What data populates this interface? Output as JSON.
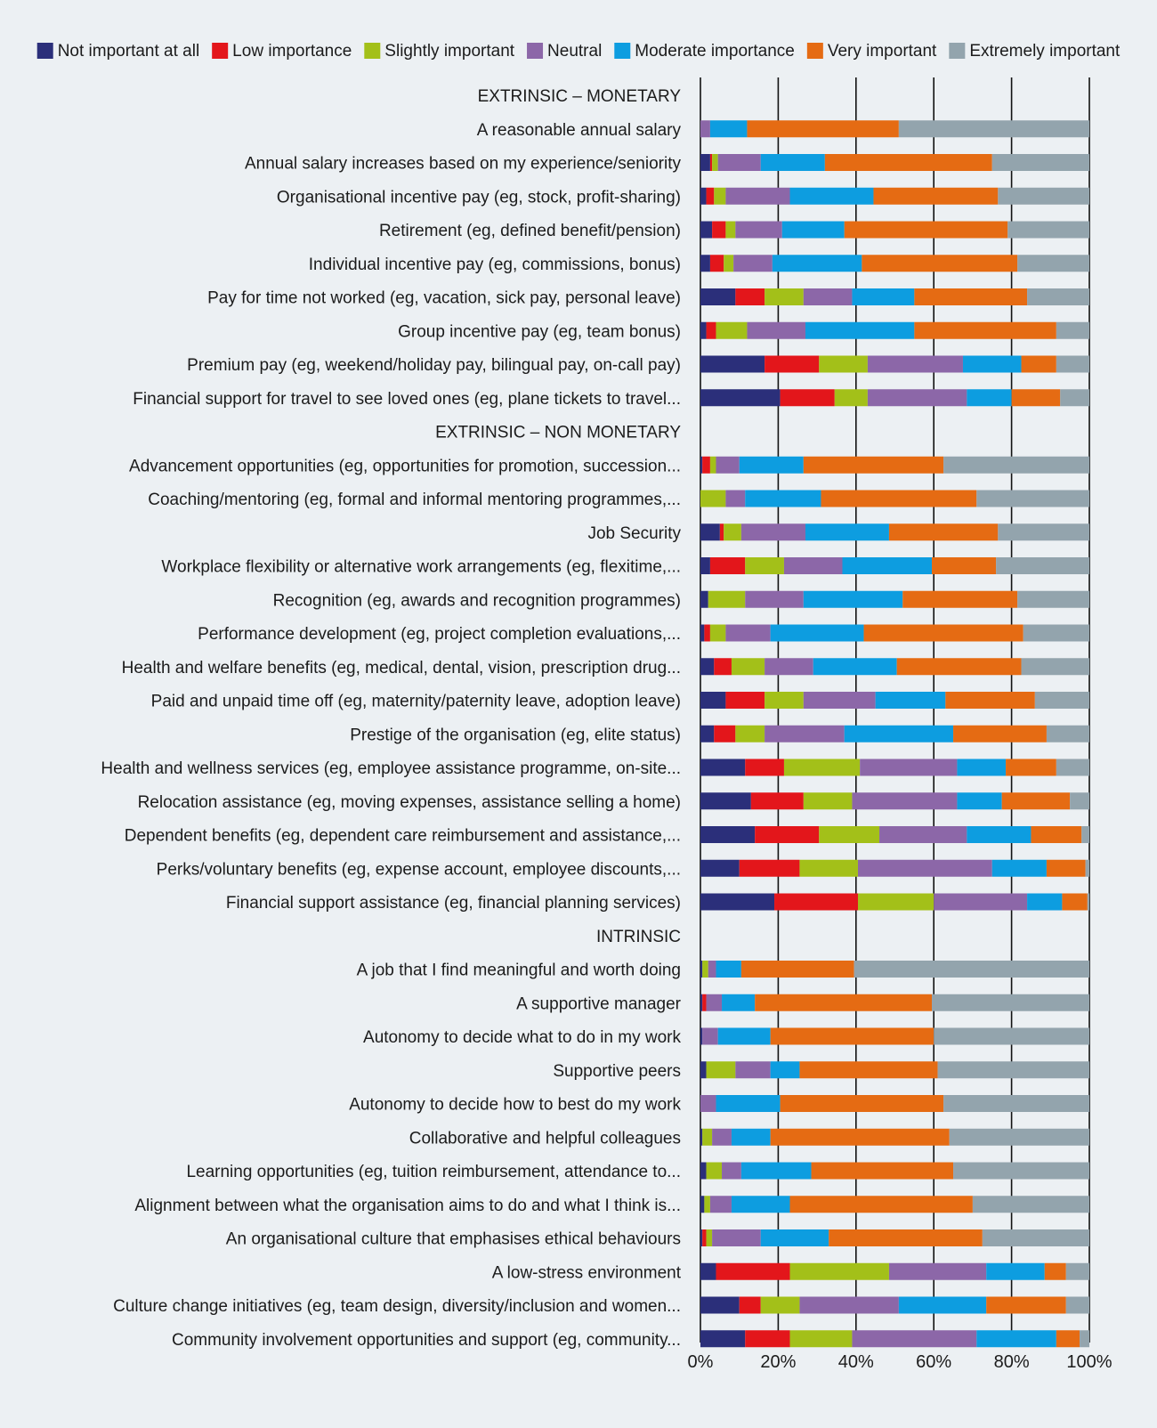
{
  "chart_data": {
    "type": "bar",
    "orientation": "horizontal",
    "stacked": true,
    "xlim": [
      0,
      100
    ],
    "x_ticks": [
      "0%",
      "20%",
      "40%",
      "60%",
      "80%",
      "100%"
    ],
    "grid": true,
    "legend_position": "top",
    "legend": [
      {
        "name": "Not important at all",
        "color": "#2b2f7a"
      },
      {
        "name": "Low importance",
        "color": "#e3161b"
      },
      {
        "name": "Slightly important",
        "color": "#a3c019"
      },
      {
        "name": "Neutral",
        "color": "#8c67a8"
      },
      {
        "name": "Moderate importance",
        "color": "#0d9de0"
      },
      {
        "name": "Very important",
        "color": "#e56b13"
      },
      {
        "name": "Extremely important",
        "color": "#93a4ad"
      }
    ],
    "groups": [
      {
        "label": "EXTRINSIC – MONETARY",
        "rows": [
          {
            "label": "A reasonable annual salary",
            "values": [
              0,
              0,
              0,
              2.5,
              9.5,
              39,
              49
            ]
          },
          {
            "label": "Annual salary increases based on my experience/seniority",
            "values": [
              2.5,
              0.5,
              1.5,
              11,
              16.5,
              43,
              25
            ]
          },
          {
            "label": "Organisational incentive pay (eg, stock, profit-sharing)",
            "values": [
              1.5,
              2,
              3,
              16.5,
              21.5,
              32,
              23.5
            ]
          },
          {
            "label": "Retirement (eg, defined benefit/pension)",
            "values": [
              3,
              3.5,
              2.5,
              12,
              16,
              42,
              21
            ]
          },
          {
            "label": "Individual incentive pay (eg, commissions, bonus)",
            "values": [
              2.5,
              3.5,
              2.5,
              10,
              23,
              40,
              18.5
            ]
          },
          {
            "label": "Pay for time not worked (eg, vacation, sick pay, personal leave)",
            "values": [
              9,
              7.5,
              10,
              12.5,
              16,
              29,
              16
            ]
          },
          {
            "label": "Group incentive pay (eg, team bonus)",
            "values": [
              1.5,
              2.5,
              8,
              15,
              28,
              36.5,
              8.5
            ]
          },
          {
            "label": "Premium pay (eg, weekend/holiday pay, bilingual pay, on-call pay)",
            "values": [
              16.5,
              14,
              12.5,
              24.5,
              15,
              9,
              8.5
            ]
          },
          {
            "label": "Financial support for travel to see loved ones (eg, plane tickets to travel...",
            "values": [
              20.5,
              14,
              8.5,
              25.5,
              11.5,
              12.5,
              7.5
            ]
          }
        ]
      },
      {
        "label": "EXTRINSIC – NON MONETARY",
        "rows": [
          {
            "label": "Advancement opportunities (eg, opportunities for promotion, succession...",
            "values": [
              0.5,
              2,
              1.5,
              6,
              16.5,
              36,
              37.5
            ]
          },
          {
            "label": "Coaching/mentoring (eg, formal and informal mentoring programmes,...",
            "values": [
              0,
              0,
              6.5,
              5,
              19.5,
              40,
              29
            ]
          },
          {
            "label": "Job Security",
            "values": [
              5,
              1,
              4.5,
              16.5,
              21.5,
              28,
              23.5
            ]
          },
          {
            "label": "Workplace flexibility or alternative work arrangements (eg, flexitime,...",
            "values": [
              2.5,
              9,
              10,
              15,
              23,
              16.5,
              24
            ]
          },
          {
            "label": "Recognition (eg, awards and recognition programmes)",
            "values": [
              2,
              0,
              9.5,
              15,
              25.5,
              29.5,
              18.5
            ]
          },
          {
            "label": "Performance development (eg, project completion evaluations,...",
            "values": [
              1,
              1.5,
              4,
              11.5,
              24,
              41,
              17
            ]
          },
          {
            "label": "Health and welfare benefits (eg, medical, dental, vision, prescription drug...",
            "values": [
              3.5,
              4.5,
              8.5,
              12.5,
              21.5,
              32,
              17.5
            ]
          },
          {
            "label": "Paid and unpaid time off (eg, maternity/paternity leave, adoption leave)",
            "values": [
              6.5,
              10,
              10,
              18.5,
              18,
              23,
              14
            ]
          },
          {
            "label": "Prestige of the organisation (eg, elite status)",
            "values": [
              3.5,
              5.5,
              7.5,
              20.5,
              28,
              24,
              11
            ]
          },
          {
            "label": "Health and wellness services (eg, employee assistance programme, on-site...",
            "values": [
              11.5,
              10,
              19.5,
              25,
              12.5,
              13,
              8.5
            ]
          },
          {
            "label": "Relocation assistance (eg, moving expenses, assistance selling a home)",
            "values": [
              13,
              13.5,
              12.5,
              27,
              11.5,
              17.5,
              5
            ]
          },
          {
            "label": "Dependent benefits (eg, dependent care reimbursement and assistance,...",
            "values": [
              14,
              16.5,
              15.5,
              22.5,
              16.5,
              13,
              2
            ]
          },
          {
            "label": "Perks/voluntary benefits (eg, expense account, employee discounts,...",
            "values": [
              10,
              15.5,
              15,
              34.5,
              14,
              10,
              1
            ]
          },
          {
            "label": "Financial support assistance (eg, financial planning services)",
            "values": [
              19,
              21.5,
              19.5,
              24,
              9,
              6.5,
              0.5
            ]
          }
        ]
      },
      {
        "label": "INTRINSIC",
        "rows": [
          {
            "label": "A job that I find meaningful and worth doing",
            "values": [
              0.5,
              0,
              1.5,
              2,
              6.5,
              29,
              60.5
            ]
          },
          {
            "label": "A supportive manager",
            "values": [
              0.5,
              1,
              0,
              4,
              8.5,
              45.5,
              40.5
            ]
          },
          {
            "label": "Autonomy to decide what to do in my work",
            "values": [
              0.5,
              0,
              0,
              4,
              13.5,
              42,
              40
            ]
          },
          {
            "label": "Supportive peers",
            "values": [
              1.5,
              0,
              7.5,
              9,
              7.5,
              35.5,
              39
            ]
          },
          {
            "label": "Autonomy to decide how to best do my work",
            "values": [
              0,
              0,
              0,
              4,
              16.5,
              42,
              37.5
            ]
          },
          {
            "label": "Collaborative and helpful colleagues",
            "values": [
              0.5,
              0,
              2.5,
              5,
              10,
              46,
              36
            ]
          },
          {
            "label": "Learning opportunities (eg, tuition reimbursement, attendance to...",
            "values": [
              1.5,
              0,
              4,
              5,
              18,
              36.5,
              35
            ]
          },
          {
            "label": "Alignment between what the organisation aims to do and what I think is...",
            "values": [
              1,
              0,
              1.5,
              5.5,
              15,
              47,
              30
            ]
          },
          {
            "label": "An organisational culture that emphasises ethical behaviours",
            "values": [
              0.5,
              1,
              1.5,
              12.5,
              17.5,
              39.5,
              27.5
            ]
          },
          {
            "label": "A low-stress environment",
            "values": [
              4,
              19,
              25.5,
              25,
              15,
              5.5,
              6
            ]
          },
          {
            "label": "Culture change initiatives (eg, team design, diversity/inclusion and women...",
            "values": [
              10,
              5.5,
              10,
              25.5,
              22.5,
              20.5,
              6
            ]
          },
          {
            "label": "Community involvement opportunities and support (eg, community...",
            "values": [
              11.5,
              11.5,
              16,
              32,
              20.5,
              6,
              2.5
            ]
          }
        ]
      }
    ]
  }
}
